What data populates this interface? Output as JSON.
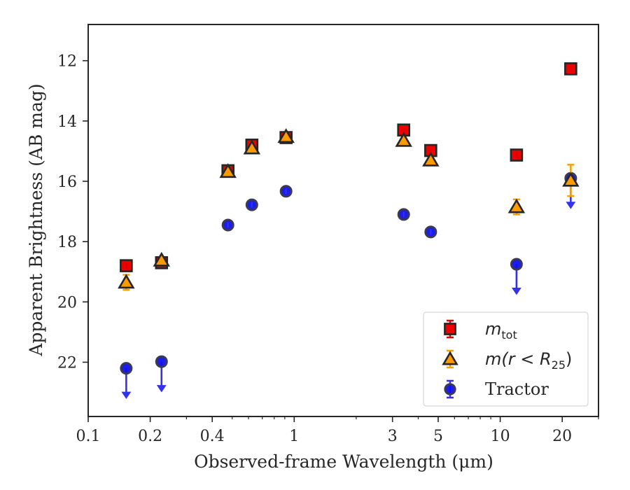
{
  "chart_data": {
    "type": "scatter",
    "xlabel": "Observed-frame Wavelength (μm)",
    "ylabel": "Apparent Brightness (AB mag)",
    "xscale": "log",
    "xlim": [
      0.1,
      30
    ],
    "ylim": [
      23.8,
      10.8
    ],
    "y_inverted": true,
    "grid": false,
    "legend_position": "lower-right",
    "x_ticks": [
      {
        "value": 0.1,
        "label": "0.1"
      },
      {
        "value": 0.2,
        "label": "0.2"
      },
      {
        "value": 0.4,
        "label": "0.4"
      },
      {
        "value": 1,
        "label": "1"
      },
      {
        "value": 3,
        "label": "3"
      },
      {
        "value": 5,
        "label": "5"
      },
      {
        "value": 10,
        "label": "10"
      },
      {
        "value": 20,
        "label": "20"
      }
    ],
    "y_ticks": [
      {
        "value": 12,
        "label": "12"
      },
      {
        "value": 14,
        "label": "14"
      },
      {
        "value": 16,
        "label": "16"
      },
      {
        "value": 18,
        "label": "18"
      },
      {
        "value": 20,
        "label": "20"
      },
      {
        "value": 22,
        "label": "22"
      }
    ],
    "series": [
      {
        "name": "m_tot",
        "legend_main": "m",
        "legend_sub": "tot",
        "marker": "square",
        "color": "#ee0000",
        "error_color": "#dd0000",
        "points": [
          {
            "x": 0.153,
            "y": 18.8,
            "err": 0.05
          },
          {
            "x": 0.227,
            "y": 18.7,
            "err": 0.05
          },
          {
            "x": 0.477,
            "y": 15.65,
            "err": 0.05
          },
          {
            "x": 0.623,
            "y": 14.8,
            "err": 0.05
          },
          {
            "x": 0.913,
            "y": 14.55,
            "err": 0.05
          },
          {
            "x": 3.4,
            "y": 14.3,
            "err": 0.05
          },
          {
            "x": 4.6,
            "y": 14.98,
            "err": 0.05
          },
          {
            "x": 12.0,
            "y": 15.13,
            "err": 0.05
          },
          {
            "x": 22.0,
            "y": 12.27,
            "err": 0.05
          }
        ]
      },
      {
        "name": "m(r < R25)",
        "legend_main": "m(r < R",
        "legend_sub": "25",
        "legend_tail": ")",
        "marker": "triangle",
        "color": "#ff9900",
        "error_color": "#f5a000",
        "points": [
          {
            "x": 0.153,
            "y": 19.35,
            "err": 0.25
          },
          {
            "x": 0.227,
            "y": 18.62,
            "err": 0.05
          },
          {
            "x": 0.477,
            "y": 15.68,
            "err": 0.05
          },
          {
            "x": 0.623,
            "y": 14.9,
            "err": 0.05
          },
          {
            "x": 0.913,
            "y": 14.52,
            "err": 0.05
          },
          {
            "x": 3.4,
            "y": 14.65,
            "err": 0.05
          },
          {
            "x": 4.6,
            "y": 15.3,
            "err": 0.05
          },
          {
            "x": 12.0,
            "y": 16.85,
            "err": 0.25
          },
          {
            "x": 22.0,
            "y": 15.97,
            "err": 0.52
          }
        ]
      },
      {
        "name": "Tractor",
        "legend_main": "Tractor",
        "marker": "circle",
        "color": "#1010ee",
        "error_color": "#3333ee",
        "points": [
          {
            "x": 0.153,
            "y": 22.2,
            "upper_limit": true
          },
          {
            "x": 0.227,
            "y": 21.98,
            "upper_limit": true
          },
          {
            "x": 0.477,
            "y": 17.45,
            "err": 0.03
          },
          {
            "x": 0.623,
            "y": 16.78,
            "err": 0.03
          },
          {
            "x": 0.913,
            "y": 16.33,
            "err": 0.03
          },
          {
            "x": 3.4,
            "y": 17.1,
            "err": 0.03
          },
          {
            "x": 4.6,
            "y": 17.68,
            "err": 0.03
          },
          {
            "x": 12.0,
            "y": 18.75,
            "upper_limit": true
          },
          {
            "x": 22.0,
            "y": 15.9,
            "upper_limit": true
          }
        ]
      }
    ]
  }
}
